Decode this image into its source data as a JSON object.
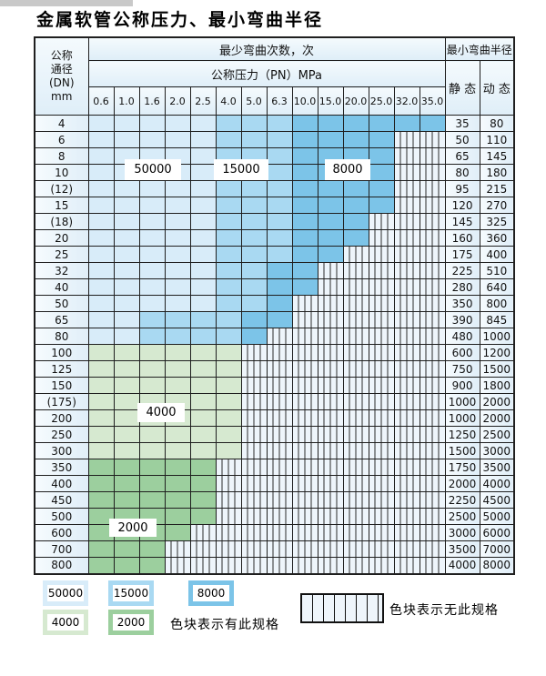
{
  "title": "金属软管公称压力、最小弯曲半径",
  "table": {
    "header": {
      "dn_lines": [
        "公称",
        "通径",
        "(DN)",
        "mm"
      ],
      "bend_cycles": "最少弯曲次数，次",
      "pressure": "公称压力（PN）MPa",
      "pressure_columns": [
        "0.6",
        "1.0",
        "1.6",
        "2.0",
        "2.5",
        "4.0",
        "5.0",
        "6.3",
        "10.0",
        "15.0",
        "20.0",
        "25.0",
        "32.0",
        "35.0"
      ],
      "min_radius": "最小弯曲半径",
      "static": "静 态",
      "dynamic": "动 态"
    },
    "cell_code_meaning": {
      "b1": "50000次",
      "b2": "15000次",
      "b3": "8000次",
      "g1": "4000次",
      "g2": "2000次",
      "s": "无此规格"
    },
    "rows": [
      {
        "dn": "4",
        "cells": [
          "b1",
          "b1",
          "b1",
          "b1",
          "b1",
          "b2",
          "b2",
          "b2",
          "b3",
          "b3",
          "b3",
          "b3",
          "b3",
          "b3"
        ],
        "static": "35",
        "dynamic": "80"
      },
      {
        "dn": "6",
        "cells": [
          "b1",
          "b1",
          "b1",
          "b1",
          "b1",
          "b2",
          "b2",
          "b2",
          "b3",
          "b3",
          "b3",
          "b3",
          "s",
          "s"
        ],
        "static": "50",
        "dynamic": "110"
      },
      {
        "dn": "8",
        "cells": [
          "b1",
          "b1",
          "b1",
          "b1",
          "b1",
          "b2",
          "b2",
          "b2",
          "b3",
          "b3",
          "b3",
          "b3",
          "s",
          "s"
        ],
        "static": "65",
        "dynamic": "145"
      },
      {
        "dn": "10",
        "cells": [
          "b1",
          "b1",
          "b1",
          "b1",
          "b1",
          "b2",
          "b2",
          "b2",
          "b3",
          "b3",
          "b3",
          "b3",
          "s",
          "s"
        ],
        "static": "80",
        "dynamic": "180"
      },
      {
        "dn": "(12)",
        "cells": [
          "b1",
          "b1",
          "b1",
          "b1",
          "b1",
          "b2",
          "b2",
          "b2",
          "b3",
          "b3",
          "b3",
          "b3",
          "s",
          "s"
        ],
        "static": "95",
        "dynamic": "215"
      },
      {
        "dn": "15",
        "cells": [
          "b1",
          "b1",
          "b1",
          "b1",
          "b1",
          "b2",
          "b2",
          "b2",
          "b3",
          "b3",
          "b3",
          "b3",
          "s",
          "s"
        ],
        "static": "120",
        "dynamic": "270"
      },
      {
        "dn": "(18)",
        "cells": [
          "b1",
          "b1",
          "b1",
          "b1",
          "b1",
          "b2",
          "b2",
          "b2",
          "b3",
          "b3",
          "b3",
          "s",
          "s",
          "s"
        ],
        "static": "145",
        "dynamic": "325"
      },
      {
        "dn": "20",
        "cells": [
          "b1",
          "b1",
          "b1",
          "b1",
          "b1",
          "b2",
          "b2",
          "b2",
          "b3",
          "b3",
          "b3",
          "s",
          "s",
          "s"
        ],
        "static": "160",
        "dynamic": "360"
      },
      {
        "dn": "25",
        "cells": [
          "b1",
          "b1",
          "b1",
          "b1",
          "b1",
          "b2",
          "b2",
          "b2",
          "b3",
          "b3",
          "s",
          "s",
          "s",
          "s"
        ],
        "static": "175",
        "dynamic": "400"
      },
      {
        "dn": "32",
        "cells": [
          "b1",
          "b1",
          "b1",
          "b1",
          "b1",
          "b2",
          "b2",
          "b3",
          "b3",
          "s",
          "s",
          "s",
          "s",
          "s"
        ],
        "static": "225",
        "dynamic": "510"
      },
      {
        "dn": "40",
        "cells": [
          "b1",
          "b1",
          "b1",
          "b1",
          "b1",
          "b2",
          "b2",
          "b3",
          "b3",
          "s",
          "s",
          "s",
          "s",
          "s"
        ],
        "static": "280",
        "dynamic": "640"
      },
      {
        "dn": "50",
        "cells": [
          "b1",
          "b1",
          "b1",
          "b1",
          "b1",
          "b2",
          "b2",
          "b3",
          "s",
          "s",
          "s",
          "s",
          "s",
          "s"
        ],
        "static": "350",
        "dynamic": "800"
      },
      {
        "dn": "65",
        "cells": [
          "b1",
          "b1",
          "b2",
          "b2",
          "b2",
          "b2",
          "b3",
          "b3",
          "s",
          "s",
          "s",
          "s",
          "s",
          "s"
        ],
        "static": "390",
        "dynamic": "845"
      },
      {
        "dn": "80",
        "cells": [
          "b1",
          "b1",
          "b2",
          "b2",
          "b2",
          "b2",
          "b3",
          "s",
          "s",
          "s",
          "s",
          "s",
          "s",
          "s"
        ],
        "static": "480",
        "dynamic": "1000"
      },
      {
        "dn": "100",
        "cells": [
          "g1",
          "g1",
          "g1",
          "g1",
          "g1",
          "g1",
          "s",
          "s",
          "s",
          "s",
          "s",
          "s",
          "s",
          "s"
        ],
        "static": "600",
        "dynamic": "1200"
      },
      {
        "dn": "125",
        "cells": [
          "g1",
          "g1",
          "g1",
          "g1",
          "g1",
          "g1",
          "s",
          "s",
          "s",
          "s",
          "s",
          "s",
          "s",
          "s"
        ],
        "static": "750",
        "dynamic": "1500"
      },
      {
        "dn": "150",
        "cells": [
          "g1",
          "g1",
          "g1",
          "g1",
          "g1",
          "g1",
          "s",
          "s",
          "s",
          "s",
          "s",
          "s",
          "s",
          "s"
        ],
        "static": "900",
        "dynamic": "1800"
      },
      {
        "dn": "(175)",
        "cells": [
          "g1",
          "g1",
          "g1",
          "g1",
          "g1",
          "g1",
          "s",
          "s",
          "s",
          "s",
          "s",
          "s",
          "s",
          "s"
        ],
        "static": "1000",
        "dynamic": "2000"
      },
      {
        "dn": "200",
        "cells": [
          "g1",
          "g1",
          "g1",
          "g1",
          "g1",
          "g1",
          "s",
          "s",
          "s",
          "s",
          "s",
          "s",
          "s",
          "s"
        ],
        "static": "1000",
        "dynamic": "2000"
      },
      {
        "dn": "250",
        "cells": [
          "g1",
          "g1",
          "g1",
          "g1",
          "g1",
          "g1",
          "s",
          "s",
          "s",
          "s",
          "s",
          "s",
          "s",
          "s"
        ],
        "static": "1250",
        "dynamic": "2500"
      },
      {
        "dn": "300",
        "cells": [
          "g1",
          "g1",
          "g1",
          "g1",
          "g1",
          "g1",
          "s",
          "s",
          "s",
          "s",
          "s",
          "s",
          "s",
          "s"
        ],
        "static": "1500",
        "dynamic": "3000"
      },
      {
        "dn": "350",
        "cells": [
          "g2",
          "g2",
          "g2",
          "g2",
          "g2",
          "s",
          "s",
          "s",
          "s",
          "s",
          "s",
          "s",
          "s",
          "s"
        ],
        "static": "1750",
        "dynamic": "3500"
      },
      {
        "dn": "400",
        "cells": [
          "g2",
          "g2",
          "g2",
          "g2",
          "g2",
          "s",
          "s",
          "s",
          "s",
          "s",
          "s",
          "s",
          "s",
          "s"
        ],
        "static": "2000",
        "dynamic": "4000"
      },
      {
        "dn": "450",
        "cells": [
          "g2",
          "g2",
          "g2",
          "g2",
          "g2",
          "s",
          "s",
          "s",
          "s",
          "s",
          "s",
          "s",
          "s",
          "s"
        ],
        "static": "2250",
        "dynamic": "4500"
      },
      {
        "dn": "500",
        "cells": [
          "g2",
          "g2",
          "g2",
          "g2",
          "g2",
          "s",
          "s",
          "s",
          "s",
          "s",
          "s",
          "s",
          "s",
          "s"
        ],
        "static": "2500",
        "dynamic": "5000"
      },
      {
        "dn": "600",
        "cells": [
          "g2",
          "g2",
          "g2",
          "g2",
          "s",
          "s",
          "s",
          "s",
          "s",
          "s",
          "s",
          "s",
          "s",
          "s"
        ],
        "static": "3000",
        "dynamic": "6000"
      },
      {
        "dn": "700",
        "cells": [
          "g2",
          "g2",
          "g2",
          "s",
          "s",
          "s",
          "s",
          "s",
          "s",
          "s",
          "s",
          "s",
          "s",
          "s"
        ],
        "static": "3500",
        "dynamic": "7000"
      },
      {
        "dn": "800",
        "cells": [
          "g2",
          "g2",
          "g2",
          "s",
          "s",
          "s",
          "s",
          "s",
          "s",
          "s",
          "s",
          "s",
          "s",
          "s"
        ],
        "static": "4000",
        "dynamic": "8000"
      }
    ],
    "zone_labels": [
      "50000",
      "15000",
      "8000",
      "4000",
      "2000"
    ]
  },
  "legend": {
    "swatches": [
      {
        "label": "50000",
        "code": "b1"
      },
      {
        "label": "15000",
        "code": "b2"
      },
      {
        "label": "8000",
        "code": "b3"
      },
      {
        "label": "4000",
        "code": "g1"
      },
      {
        "label": "2000",
        "code": "g2"
      }
    ],
    "has_spec_text": "色块表示有此规格",
    "no_spec_text": "色块表示无此规格"
  },
  "colors": {
    "cycles_50000": "#d8ecf9",
    "cycles_15000": "#a9d9f2",
    "cycles_8000": "#7cc4e8",
    "cycles_4000": "#d6e9d0",
    "cycles_2000": "#9ccf9e",
    "grid_line": "#1f1f1f"
  }
}
